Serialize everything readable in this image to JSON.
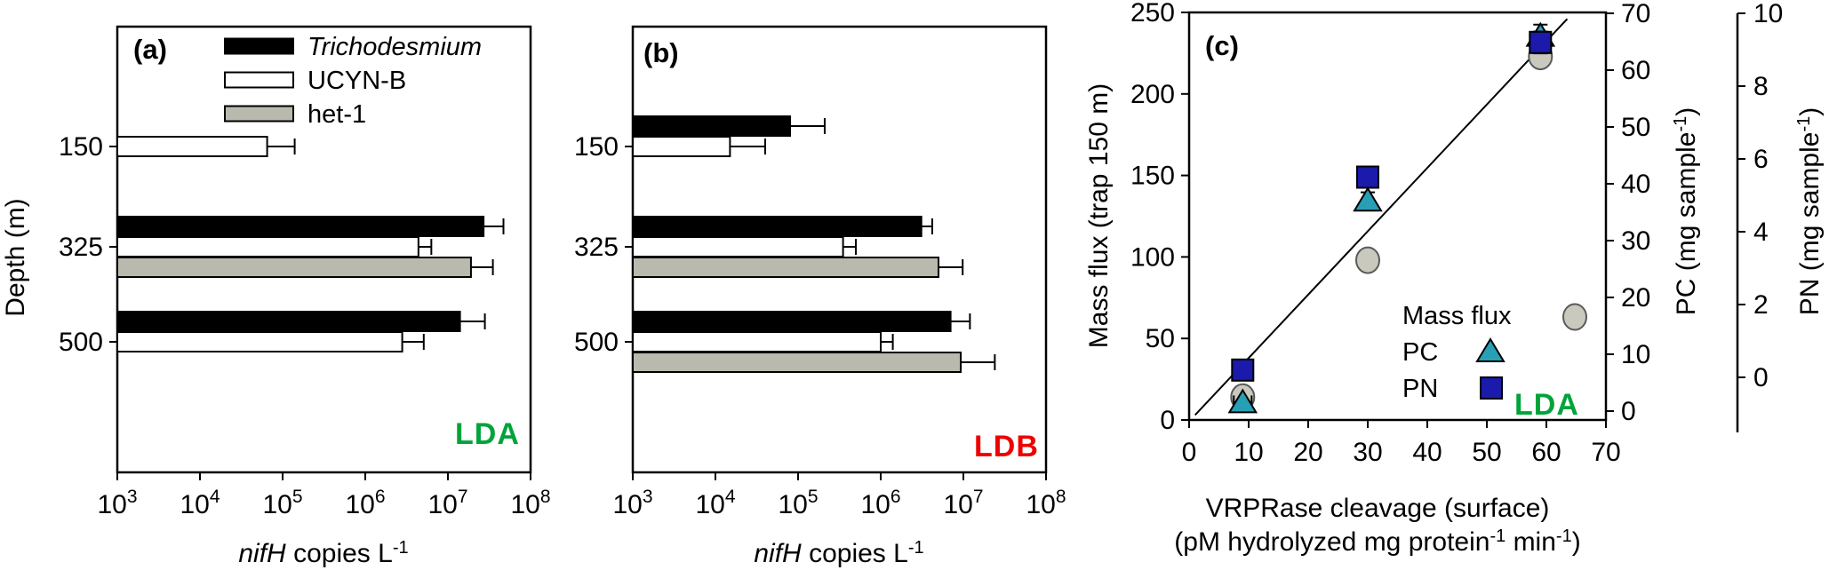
{
  "figure_background": "#ffffff",
  "chart_data": [
    {
      "id": "a",
      "type": "bar",
      "orientation": "horizontal",
      "x_scale": "log",
      "panel_label": "(a)",
      "station_label": "LDA",
      "station_color": "#00a43a",
      "x_exponents": [
        3,
        4,
        5,
        6,
        7,
        8
      ],
      "xlabel_italic": "nifH",
      "xlabel_rest": " copies L",
      "xlabel_sup": "-1",
      "ylabel": "Depth (m)",
      "depths": [
        150,
        325,
        500
      ],
      "legend_position": "top-left-inside",
      "series": [
        {
          "name": "Trichodesmium",
          "italic": true,
          "fill": "#000000",
          "stroke": "#000000",
          "values": [
            null,
            27000000.0,
            14000000.0
          ],
          "err_hi": [
            null,
            47000000.0,
            28000000.0
          ]
        },
        {
          "name": "UCYN-B",
          "italic": false,
          "fill": "#ffffff",
          "stroke": "#000000",
          "values": [
            65000.0,
            4400000.0,
            2800000.0
          ],
          "err_hi": [
            140000.0,
            6300000.0,
            5100000.0
          ]
        },
        {
          "name": "het-1",
          "italic": false,
          "fill": "#b9b9ad",
          "stroke": "#000000",
          "values": [
            null,
            19000000.0,
            null
          ],
          "err_hi": [
            null,
            35000000.0,
            null
          ]
        }
      ]
    },
    {
      "id": "b",
      "type": "bar",
      "orientation": "horizontal",
      "x_scale": "log",
      "panel_label": "(b)",
      "station_label": "LDB",
      "station_color": "#ee0000",
      "x_exponents": [
        3,
        4,
        5,
        6,
        7,
        8
      ],
      "xlabel_italic": "nifH",
      "xlabel_rest": " copies L",
      "xlabel_sup": "-1",
      "depths": [
        150,
        325,
        500
      ],
      "series": [
        {
          "name": "Trichodesmium",
          "italic": true,
          "fill": "#000000",
          "stroke": "#000000",
          "values": [
            80000.0,
            3100000.0,
            7000000.0
          ],
          "err_hi": [
            210000.0,
            4200000.0,
            12000000.0
          ]
        },
        {
          "name": "UCYN-B",
          "italic": false,
          "fill": "#ffffff",
          "stroke": "#000000",
          "values": [
            15000.0,
            350000.0,
            1000000.0
          ],
          "err_hi": [
            40000.0,
            500000.0,
            1400000.0
          ]
        },
        {
          "name": "het-1",
          "italic": false,
          "fill": "#b9b9ad",
          "stroke": "#000000",
          "values": [
            null,
            5000000.0,
            9300000.0
          ],
          "err_hi": [
            null,
            9800000.0,
            24000000.0
          ]
        }
      ]
    },
    {
      "id": "c",
      "type": "scatter",
      "panel_label": "(c)",
      "station_label": "LDA",
      "station_color": "#00a43a",
      "xlabel_line1": "VRPRase cleavage (surface)",
      "xlabel_line2_parts": [
        "(pM hydrolyzed mg protein",
        "-1",
        " min",
        "-1",
        ")"
      ],
      "x_ticks": [
        0,
        10,
        20,
        30,
        40,
        50,
        60,
        70
      ],
      "x_range": [
        0,
        70
      ],
      "grid": false,
      "left_axis": {
        "label": "Mass flux (trap 150 m)",
        "ticks": [
          0,
          50,
          100,
          150,
          200,
          250
        ],
        "range": [
          0,
          250
        ]
      },
      "right_axis_pc": {
        "label_main": "PC (mg sample",
        "label_sup": "-1",
        "label_close": ")",
        "ticks": [
          0,
          10,
          20,
          30,
          40,
          50,
          60,
          70
        ],
        "range": [
          0,
          70
        ]
      },
      "right_axis_pn": {
        "label_main": "PN (mg sample",
        "label_sup": "-1",
        "label_close": ")",
        "ticks": [
          0,
          2,
          4,
          6,
          8,
          10
        ],
        "range": [
          0,
          10
        ]
      },
      "series": [
        {
          "name": "Mass flux",
          "marker": "circle",
          "fill": "#c9c9bd",
          "stroke": "#5a5a5a",
          "axis": "left",
          "points": [
            {
              "x": 9,
              "y": 14
            },
            {
              "x": 30,
              "y": 98
            },
            {
              "x": 59,
              "y": 223
            }
          ],
          "xerr": [
            1.5,
            0,
            0
          ],
          "yerr": [
            0,
            0,
            0
          ]
        },
        {
          "name": "PC",
          "marker": "triangle",
          "fill": "#27a0b5",
          "stroke": "#000000",
          "axis": "pc",
          "points": [
            {
              "x": 9,
              "y": 1.5
            },
            {
              "x": 30,
              "y": 37
            },
            {
              "x": 59,
              "y": 66
            }
          ],
          "xerr": [
            1.5,
            0,
            0
          ],
          "yerr": [
            0,
            1.5,
            2
          ]
        },
        {
          "name": "PN",
          "marker": "square",
          "fill": "#1b1aab",
          "stroke": "#000000",
          "axis": "pn",
          "points": [
            {
              "x": 9,
              "y": 0.2
            },
            {
              "x": 30,
              "y": 5.5
            },
            {
              "x": 59,
              "y": 9.2
            }
          ],
          "xerr": [
            1.5,
            0,
            0
          ],
          "yerr": [
            0,
            0,
            0.3
          ]
        }
      ],
      "regression_line": {
        "x1": 1,
        "y1_mf": 3,
        "x2": 63.5,
        "y2_mf": 246
      }
    }
  ]
}
